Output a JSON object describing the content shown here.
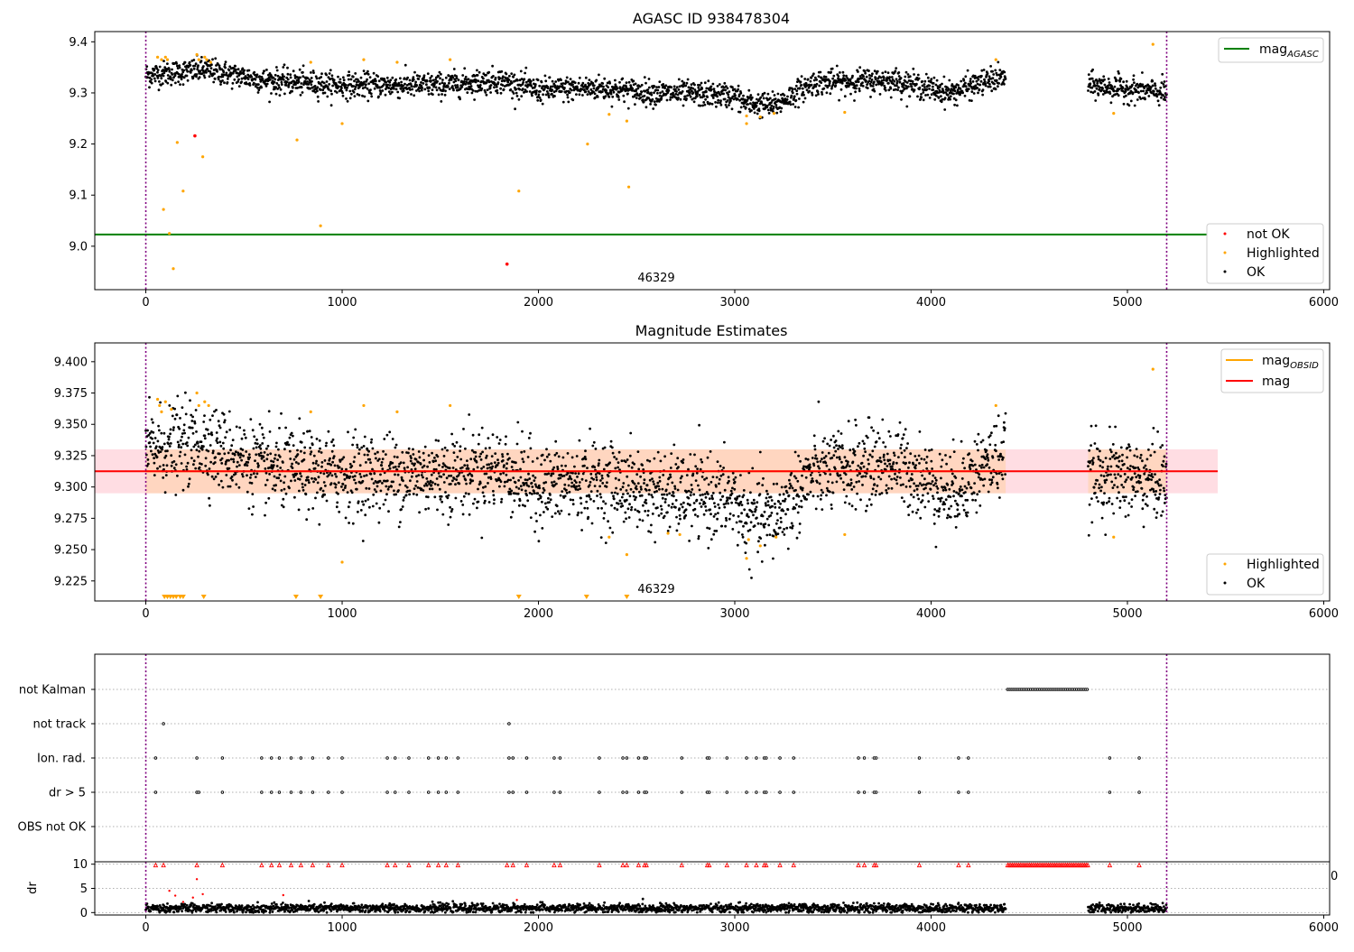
{
  "chart_data": [
    {
      "type": "scatter",
      "title": "AGASC ID 938478304",
      "xlim": [
        -260,
        6030
      ],
      "ylim": [
        8.915,
        9.42
      ],
      "xticks": [
        0,
        1000,
        2000,
        3000,
        4000,
        5000,
        6000
      ],
      "yticks": [
        9.0,
        9.1,
        9.2,
        9.3,
        9.4
      ],
      "ytick_labels": [
        "9.0",
        "9.1",
        "9.2",
        "9.3",
        "9.4"
      ],
      "vertical_lines": [
        0,
        5200
      ],
      "hlines": [
        {
          "name": "mag_AGASC",
          "y": 9.023,
          "color": "#008000",
          "x_range": [
            -260,
            5460
          ]
        }
      ],
      "annotation": {
        "text": "46329",
        "x": 2600,
        "y": 8.93
      },
      "legend_lines": [
        {
          "label": "mag",
          "sub": "AGASC",
          "color": "#008000"
        }
      ],
      "legend_points": [
        {
          "label": "not OK",
          "color": "#ff0000"
        },
        {
          "label": "Highlighted",
          "color": "#ffa500"
        },
        {
          "label": "OK",
          "color": "#000000"
        }
      ],
      "ok_series": {
        "segments": [
          [
            0,
            4380
          ],
          [
            4800,
            5200
          ]
        ],
        "base": 9.318,
        "profile": [
          [
            0,
            9.335
          ],
          [
            300,
            9.345
          ],
          [
            600,
            9.325
          ],
          [
            1000,
            9.315
          ],
          [
            1500,
            9.315
          ],
          [
            1800,
            9.325
          ],
          [
            2000,
            9.305
          ],
          [
            2300,
            9.31
          ],
          [
            2600,
            9.3
          ],
          [
            3000,
            9.295
          ],
          [
            3050,
            9.28
          ],
          [
            3200,
            9.275
          ],
          [
            3400,
            9.32
          ],
          [
            3800,
            9.325
          ],
          [
            4100,
            9.3
          ],
          [
            4300,
            9.325
          ],
          [
            4380,
            9.33
          ],
          [
            4800,
            9.315
          ],
          [
            5200,
            9.3
          ]
        ],
        "spread": 0.012
      },
      "highlighted_points": [
        [
          60,
          9.37
        ],
        [
          80,
          9.365
        ],
        [
          100,
          9.37
        ],
        [
          110,
          9.365
        ],
        [
          90,
          9.072
        ],
        [
          120,
          9.025
        ],
        [
          140,
          8.956
        ],
        [
          160,
          9.203
        ],
        [
          190,
          9.108
        ],
        [
          260,
          9.375
        ],
        [
          270,
          9.365
        ],
        [
          290,
          9.175
        ],
        [
          300,
          9.37
        ],
        [
          310,
          9.365
        ],
        [
          330,
          9.36
        ],
        [
          770,
          9.208
        ],
        [
          840,
          9.36
        ],
        [
          890,
          9.04
        ],
        [
          1000,
          9.24
        ],
        [
          1110,
          9.365
        ],
        [
          1280,
          9.36
        ],
        [
          1550,
          9.365
        ],
        [
          1900,
          9.108
        ],
        [
          2250,
          9.2
        ],
        [
          2450,
          9.245
        ],
        [
          2460,
          9.116
        ],
        [
          2360,
          9.258
        ],
        [
          3060,
          9.24
        ],
        [
          3060,
          9.255
        ],
        [
          3130,
          9.253
        ],
        [
          3200,
          9.26
        ],
        [
          3560,
          9.262
        ],
        [
          4330,
          9.365
        ],
        [
          4930,
          9.26
        ],
        [
          5130,
          9.395
        ]
      ],
      "not_ok_points": [
        [
          250,
          9.216
        ],
        [
          1840,
          8.965
        ]
      ]
    },
    {
      "type": "scatter",
      "title": "Magnitude Estimates",
      "xlim": [
        -260,
        6030
      ],
      "ylim": [
        9.209,
        9.415
      ],
      "xticks": [
        0,
        1000,
        2000,
        3000,
        4000,
        5000,
        6000
      ],
      "yticks": [
        9.225,
        9.25,
        9.275,
        9.3,
        9.325,
        9.35,
        9.375,
        9.4
      ],
      "ytick_labels": [
        "9.225",
        "9.250",
        "9.275",
        "9.300",
        "9.325",
        "9.350",
        "9.375",
        "9.400"
      ],
      "vertical_lines": [
        0,
        5200
      ],
      "hlines": [
        {
          "name": "mag",
          "y": 9.3125,
          "color": "#ff0000",
          "x_range": [
            -260,
            5460
          ]
        }
      ],
      "band": {
        "y0": 9.295,
        "y1": 9.33,
        "x_range": [
          -260,
          5460
        ]
      },
      "obsid_series": {
        "x": [
          0,
          4380
        ],
        "y": 9.3125,
        "color": "#ffa500"
      },
      "annotation": {
        "text": "46329",
        "x": 2600,
        "y": 9.215
      },
      "legend_lines": [
        {
          "label": "mag",
          "sub": "OBSID",
          "color": "#ffa500"
        },
        {
          "label": "mag",
          "sub": "",
          "color": "#ff0000"
        }
      ],
      "legend_points": [
        {
          "label": "Highlighted",
          "color": "#ffa500"
        },
        {
          "label": "OK",
          "color": "#000000"
        }
      ],
      "ok_series": {
        "segments": [
          [
            0,
            4380
          ],
          [
            4800,
            5200
          ]
        ],
        "profile": [
          [
            0,
            9.33
          ],
          [
            300,
            9.335
          ],
          [
            600,
            9.315
          ],
          [
            1000,
            9.31
          ],
          [
            1500,
            9.31
          ],
          [
            1800,
            9.315
          ],
          [
            2000,
            9.3
          ],
          [
            2300,
            9.305
          ],
          [
            2600,
            9.295
          ],
          [
            3000,
            9.29
          ],
          [
            3050,
            9.275
          ],
          [
            3200,
            9.275
          ],
          [
            3400,
            9.31
          ],
          [
            3800,
            9.32
          ],
          [
            4100,
            9.295
          ],
          [
            4300,
            9.32
          ],
          [
            4380,
            9.325
          ],
          [
            4800,
            9.31
          ],
          [
            5200,
            9.305
          ]
        ],
        "spread": 0.016
      },
      "highlighted_points": [
        [
          60,
          9.37
        ],
        [
          70,
          9.365
        ],
        [
          80,
          9.36
        ],
        [
          100,
          9.368
        ],
        [
          130,
          9.362
        ],
        [
          260,
          9.375
        ],
        [
          270,
          9.365
        ],
        [
          300,
          9.368
        ],
        [
          320,
          9.365
        ],
        [
          840,
          9.36
        ],
        [
          1000,
          9.24
        ],
        [
          1110,
          9.365
        ],
        [
          1280,
          9.36
        ],
        [
          1550,
          9.365
        ],
        [
          2360,
          9.26
        ],
        [
          2450,
          9.246
        ],
        [
          2660,
          9.263
        ],
        [
          2720,
          9.262
        ],
        [
          3060,
          9.243
        ],
        [
          3070,
          9.258
        ],
        [
          3130,
          9.253
        ],
        [
          3210,
          9.26
        ],
        [
          3560,
          9.262
        ],
        [
          4330,
          9.365
        ],
        [
          4930,
          9.26
        ],
        [
          5130,
          9.394
        ]
      ],
      "clipped_triangles": [
        95,
        110,
        125,
        140,
        155,
        175,
        190,
        295,
        765,
        890,
        1900,
        2245,
        2450
      ]
    },
    {
      "type": "scatter",
      "title": "",
      "xlim": [
        -260,
        6030
      ],
      "categories": [
        "not Kalman",
        "not track",
        "Ion. rad.",
        "dr > 5",
        "OBS not OK"
      ],
      "vertical_lines": [
        0,
        5200
      ],
      "not_kalman_range": [
        4390,
        4800
      ],
      "not_track": [
        90,
        1850
      ],
      "ion_rad": [
        50,
        260,
        390,
        590,
        640,
        680,
        740,
        790,
        850,
        930,
        1000,
        1230,
        1270,
        1340,
        1440,
        1490,
        1530,
        1590,
        1850,
        1870,
        1940,
        2080,
        2110,
        2310,
        2430,
        2450,
        2510,
        2540,
        2550,
        2730,
        2860,
        2870,
        2960,
        3060,
        3110,
        3150,
        3160,
        3230,
        3300,
        3630,
        3660,
        3710,
        3720,
        3940,
        4140,
        4190,
        4910,
        5060
      ],
      "dr_gt_5": [
        50,
        260,
        270,
        390,
        590,
        640,
        680,
        740,
        790,
        850,
        930,
        1000,
        1230,
        1270,
        1340,
        1440,
        1490,
        1530,
        1590,
        1850,
        1870,
        1940,
        2080,
        2110,
        2310,
        2430,
        2450,
        2510,
        2540,
        2550,
        2730,
        2860,
        2870,
        2960,
        3060,
        3110,
        3150,
        3160,
        3230,
        3300,
        3630,
        3660,
        3710,
        3720,
        3940,
        4140,
        4190,
        4910,
        5060
      ]
    },
    {
      "type": "scatter",
      "title": "",
      "ylabel": "dr",
      "xlim": [
        -260,
        6030
      ],
      "ylim": [
        -0.5,
        10.5
      ],
      "xticks": [
        0,
        1000,
        2000,
        3000,
        4000,
        5000,
        6000
      ],
      "yticks": [
        0,
        5,
        10
      ],
      "ytick_labels": [
        "0",
        "5",
        "10"
      ],
      "vertical_lines": [
        0,
        5200
      ],
      "offscale_label": "0",
      "ok_series": {
        "segments": [
          [
            0,
            4380
          ],
          [
            4800,
            5200
          ]
        ],
        "level": 0.9,
        "spread": 0.45
      },
      "red_clipped_x": [
        50,
        90,
        260,
        390,
        590,
        640,
        680,
        740,
        790,
        850,
        930,
        1000,
        1230,
        1270,
        1340,
        1440,
        1490,
        1530,
        1590,
        1840,
        1870,
        1940,
        2080,
        2110,
        2310,
        2430,
        2450,
        2510,
        2540,
        2550,
        2730,
        2860,
        2870,
        2960,
        3060,
        3110,
        3150,
        3160,
        3230,
        3300,
        3630,
        3660,
        3710,
        3720,
        3940,
        4140,
        4190,
        4910,
        5060
      ],
      "red_scatter": [
        [
          120,
          4.5
        ],
        [
          150,
          3.5
        ],
        [
          190,
          2.2
        ],
        [
          240,
          3.1
        ],
        [
          260,
          6.9
        ],
        [
          290,
          3.8
        ],
        [
          700,
          3.6
        ],
        [
          1890,
          2.6
        ]
      ],
      "red_dense_range": [
        4390,
        4800
      ]
    }
  ]
}
